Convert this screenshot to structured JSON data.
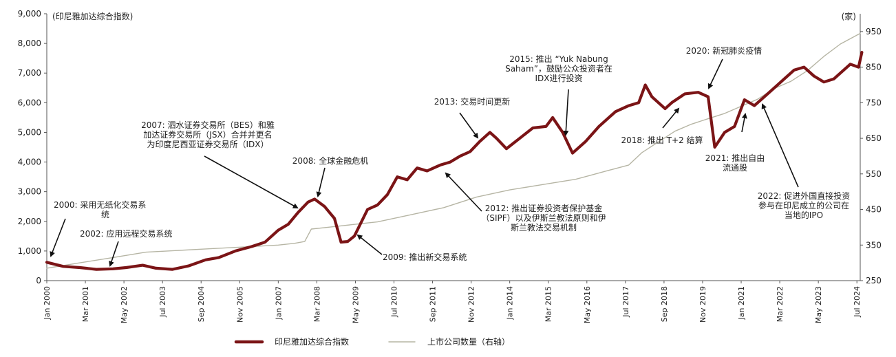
{
  "chart_data": {
    "type": "line",
    "left_axis_label": "(印尼雅加达综合指数)",
    "right_axis_label": "(家)",
    "y_left": {
      "min": 0,
      "max": 9000,
      "ticks": [
        "0",
        "1,000",
        "2,000",
        "3,000",
        "4,000",
        "5,000",
        "6,000",
        "7,000",
        "8,000",
        "9,000"
      ]
    },
    "y_right": {
      "min": 250,
      "max": 1000,
      "ticks": [
        "250",
        "350",
        "450",
        "550",
        "650",
        "750",
        "850",
        "950"
      ]
    },
    "x_ticks": [
      "Jan 2000",
      "Mar 2001",
      "May 2002",
      "Jul 2003",
      "Sep 2004",
      "Nov 2005",
      "Jan 2007",
      "Mar 2008",
      "May 2009",
      "Jul 2010",
      "Sep 2011",
      "Nov 2012",
      "Jan 2014",
      "Mar 2015",
      "May 2016",
      "Jul 2017",
      "Sep 2018",
      "Nov 2019",
      "Jan 2021",
      "Mar 2022",
      "May 2023",
      "Jul 2024"
    ],
    "series": [
      {
        "name": "印尼雅加达综合指数",
        "axis": "left",
        "color": "#7b1416",
        "x": [
          2000.0,
          2000.5,
          2001.0,
          2001.5,
          2002.0,
          2002.4,
          2002.9,
          2003.3,
          2003.8,
          2004.3,
          2004.8,
          2005.2,
          2005.7,
          2006.2,
          2006.6,
          2007.0,
          2007.3,
          2007.6,
          2007.9,
          2008.1,
          2008.4,
          2008.7,
          2008.9,
          2009.1,
          2009.3,
          2009.7,
          2010.0,
          2010.3,
          2010.6,
          2010.9,
          2011.2,
          2011.5,
          2011.7,
          2011.9,
          2012.2,
          2012.5,
          2012.8,
          2013.1,
          2013.4,
          2013.6,
          2013.9,
          2014.3,
          2014.7,
          2015.1,
          2015.3,
          2015.6,
          2015.9,
          2016.3,
          2016.7,
          2016.9,
          2017.2,
          2017.6,
          2017.9,
          2018.1,
          2018.3,
          2018.7,
          2018.9,
          2019.3,
          2019.7,
          2020.0,
          2020.2,
          2020.5,
          2020.8,
          2021.1,
          2021.4,
          2021.7,
          2022.0,
          2022.3,
          2022.6,
          2022.9,
          2023.2,
          2023.5,
          2023.8,
          2024.0,
          2024.3,
          2024.55,
          2024.65
        ],
        "y": [
          620,
          480,
          440,
          380,
          400,
          440,
          520,
          420,
          380,
          500,
          700,
          780,
          1000,
          1150,
          1300,
          1700,
          1900,
          2300,
          2650,
          2750,
          2500,
          2100,
          1300,
          1320,
          1500,
          2400,
          2550,
          2900,
          3500,
          3400,
          3800,
          3700,
          3800,
          3900,
          4000,
          4200,
          4350,
          4700,
          5000,
          4800,
          4450,
          4800,
          5150,
          5200,
          5500,
          5000,
          4300,
          4700,
          5200,
          5400,
          5700,
          5900,
          6000,
          6600,
          6200,
          5800,
          6000,
          6300,
          6350,
          6200,
          4500,
          5000,
          5200,
          6100,
          5900,
          6200,
          6500,
          6800,
          7100,
          7200,
          6900,
          6700,
          6800,
          7000,
          7300,
          7200,
          7700
        ]
      },
      {
        "name": "上市公司数量（右轴）",
        "axis": "right",
        "color": "#b6b5a4",
        "x": [
          2000.0,
          2001.0,
          2002.0,
          2003.0,
          2004.0,
          2005.0,
          2006.0,
          2007.0,
          2007.5,
          2007.8,
          2008.0,
          2008.5,
          2009.0,
          2010.0,
          2011.0,
          2012.0,
          2013.0,
          2014.0,
          2015.0,
          2016.0,
          2017.0,
          2017.6,
          2018.0,
          2018.5,
          2019.0,
          2019.5,
          2020.0,
          2020.5,
          2021.0,
          2021.5,
          2022.0,
          2022.5,
          2023.0,
          2023.5,
          2024.0,
          2024.6
        ],
        "y": [
          285,
          300,
          315,
          330,
          335,
          340,
          345,
          350,
          355,
          360,
          395,
          400,
          405,
          415,
          435,
          455,
          485,
          505,
          520,
          535,
          560,
          575,
          610,
          640,
          670,
          690,
          705,
          720,
          740,
          760,
          790,
          810,
          840,
          880,
          915,
          945
        ]
      }
    ],
    "annotations": [
      {
        "id": "a2000",
        "lines": [
          "2000: 采用无纸化交易系",
          "统"
        ]
      },
      {
        "id": "a2002",
        "lines": [
          "2002: 应用远程交易系统"
        ]
      },
      {
        "id": "a2007",
        "lines": [
          "2007: 泗水证券交易所（BES）和雅",
          "加达证券交易所（JSX）合并并更名",
          "为印度尼西亚证券交易所（IDX）"
        ]
      },
      {
        "id": "a2008",
        "lines": [
          "2008: 全球金融危机"
        ]
      },
      {
        "id": "a2009",
        "lines": [
          "2009: 推出新交易系统"
        ]
      },
      {
        "id": "a2012",
        "lines": [
          "2012: 推出证券投资者保护基金",
          "（SIPF）以及伊斯兰教法原则和伊",
          "斯兰教法交易机制"
        ]
      },
      {
        "id": "a2013",
        "lines": [
          "2013: 交易时间更新"
        ]
      },
      {
        "id": "a2015",
        "lines": [
          "2015: 推出 “Yuk Nabung",
          "Saham”，鼓励公众投资者在",
          "IDX进行投资"
        ]
      },
      {
        "id": "a2018",
        "lines": [
          "2018: 推出 T+2 结算"
        ]
      },
      {
        "id": "a2020",
        "lines": [
          "2020: 新冠肺炎疫情"
        ]
      },
      {
        "id": "a2021",
        "lines": [
          "2021: 推出自由",
          "流通股"
        ]
      },
      {
        "id": "a2022",
        "lines": [
          "2022: 促进外国直接投资",
          "参与在印尼成立的公司在",
          "当地的IPO"
        ]
      }
    ],
    "legend": [
      {
        "label": "印尼雅加达综合指数"
      },
      {
        "label": "上市公司数量（右轴）"
      }
    ],
    "legend_position": "bottom-center",
    "grid": false
  }
}
